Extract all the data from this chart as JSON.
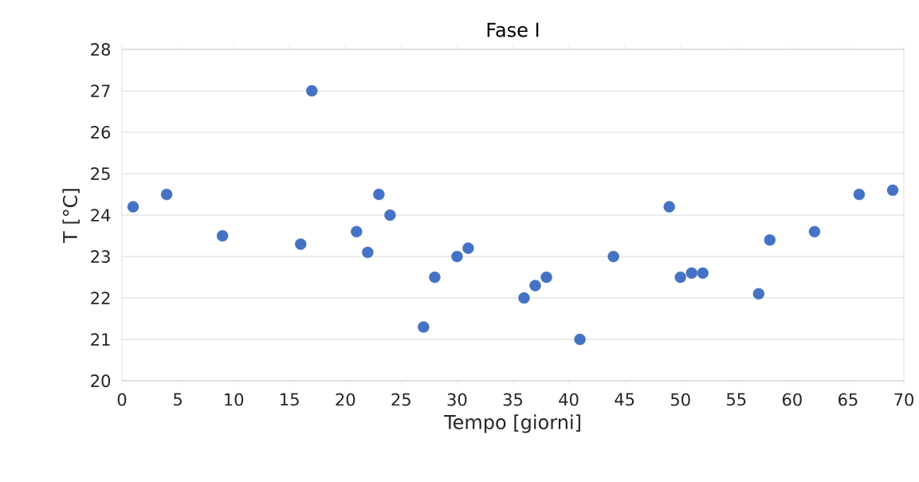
{
  "chart_data": {
    "type": "scatter",
    "title": "Fase I",
    "xlabel": "Tempo [giorni]",
    "ylabel": "T [°C]",
    "x": [
      1,
      4,
      9,
      16,
      17,
      21,
      22,
      23,
      24,
      27,
      28,
      30,
      31,
      36,
      37,
      38,
      41,
      44,
      49,
      50,
      51,
      52,
      57,
      58,
      62,
      66,
      69
    ],
    "series": [
      {
        "color": "#4472c4",
        "values": [
          24.2,
          24.5,
          23.5,
          23.3,
          27.0,
          23.6,
          23.1,
          24.5,
          24.0,
          21.3,
          22.5,
          23.0,
          23.2,
          22.0,
          22.3,
          22.5,
          21.0,
          23.0,
          24.2,
          22.5,
          22.6,
          22.6,
          22.1,
          23.4,
          23.6,
          24.5,
          24.6
        ]
      }
    ],
    "xlim": [
      0,
      70
    ],
    "ylim": [
      20,
      28
    ],
    "xticks": [
      0,
      5,
      10,
      15,
      20,
      25,
      30,
      35,
      40,
      45,
      50,
      55,
      60,
      65,
      70
    ],
    "yticks": [
      20,
      21,
      22,
      23,
      24,
      25,
      26,
      27,
      28
    ],
    "grid": "y",
    "legend": false
  }
}
